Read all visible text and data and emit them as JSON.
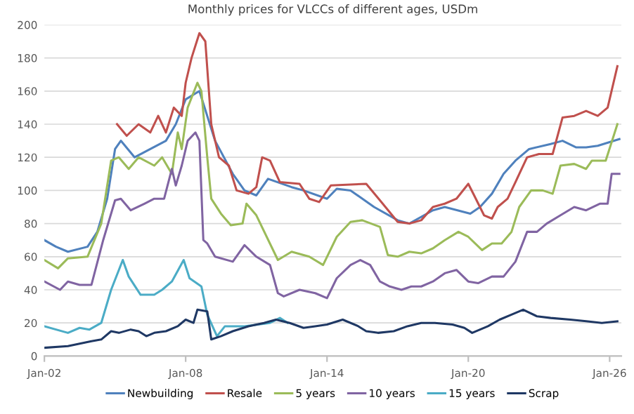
{
  "chart_data": {
    "type": "line",
    "title": "Monthly prices for VLCCs of different ages, USDm",
    "xlim": [
      "2002-01",
      "2026-07"
    ],
    "xticks": [
      {
        "value": "2002-01",
        "label": "Jan-02"
      },
      {
        "value": "2008-01",
        "label": "Jan-08"
      },
      {
        "value": "2014-01",
        "label": "Jan-14"
      },
      {
        "value": "2020-01",
        "label": "Jan-20"
      },
      {
        "value": "2026-01",
        "label": "Jan-26"
      }
    ],
    "ylim": [
      0,
      200
    ],
    "yticks": [
      0,
      20,
      40,
      60,
      80,
      100,
      120,
      140,
      160,
      180,
      200
    ],
    "grid": "y",
    "legend": "bottom",
    "series": [
      {
        "name": "Newbuilding",
        "color": "#4f81bd",
        "x": [
          "2002-01",
          "2002-07",
          "2003-01",
          "2003-11",
          "2004-04",
          "2004-09",
          "2005-01",
          "2005-04",
          "2005-11",
          "2006-07",
          "2007-03",
          "2007-08",
          "2008-01",
          "2008-08",
          "2009-04",
          "2010-01",
          "2010-07",
          "2011-01",
          "2011-07",
          "2012-07",
          "2013-01",
          "2014-01",
          "2014-06",
          "2015-01",
          "2016-01",
          "2017-01",
          "2017-07",
          "2018-07",
          "2019-01",
          "2020-02",
          "2020-07",
          "2021-01",
          "2021-07",
          "2022-01",
          "2022-08",
          "2023-07",
          "2024-01",
          "2024-08",
          "2025-01",
          "2025-07",
          "2026-06"
        ],
        "values": [
          70,
          66,
          63,
          66,
          75,
          95,
          125,
          130,
          120,
          125,
          130,
          140,
          155,
          160,
          130,
          110,
          100,
          97,
          107,
          102,
          100,
          95,
          101,
          100,
          90,
          82,
          80,
          88,
          90,
          86,
          90,
          98,
          110,
          118,
          125,
          128,
          130,
          126,
          126,
          127,
          131
        ]
      },
      {
        "name": "Resale",
        "color": "#c0504d",
        "x": [
          "2005-02",
          "2005-07",
          "2006-01",
          "2006-07",
          "2006-11",
          "2007-03",
          "2007-07",
          "2007-11",
          "2008-01",
          "2008-04",
          "2008-08",
          "2008-11",
          "2009-02",
          "2009-06",
          "2009-11",
          "2010-03",
          "2010-09",
          "2011-01",
          "2011-04",
          "2011-08",
          "2012-01",
          "2012-11",
          "2013-04",
          "2013-09",
          "2014-03",
          "2015-09",
          "2016-04",
          "2017-01",
          "2017-07",
          "2018-01",
          "2018-07",
          "2019-01",
          "2019-07",
          "2020-01",
          "2020-04",
          "2020-09",
          "2021-01",
          "2021-04",
          "2021-09",
          "2022-01",
          "2022-07",
          "2023-01",
          "2023-08",
          "2024-01",
          "2024-07",
          "2025-01",
          "2025-07",
          "2025-12",
          "2026-05"
        ],
        "values": [
          140,
          133,
          140,
          135,
          145,
          135,
          150,
          145,
          165,
          180,
          195,
          190,
          140,
          120,
          115,
          100,
          98,
          102,
          120,
          118,
          105,
          104,
          95,
          93,
          103,
          104,
          94,
          81,
          80,
          82,
          90,
          92,
          95,
          104,
          97,
          85,
          83,
          90,
          95,
          105,
          120,
          122,
          122,
          144,
          145,
          148,
          145,
          150,
          175
        ]
      },
      {
        "name": "5 years",
        "color": "#9bbb59",
        "x": [
          "2002-01",
          "2002-08",
          "2003-01",
          "2003-11",
          "2004-06",
          "2004-11",
          "2005-03",
          "2005-08",
          "2006-01",
          "2006-09",
          "2007-01",
          "2007-06",
          "2007-09",
          "2007-11",
          "2008-02",
          "2008-07",
          "2008-09",
          "2008-12",
          "2009-02",
          "2009-07",
          "2009-12",
          "2010-06",
          "2010-08",
          "2011-01",
          "2011-12",
          "2012-07",
          "2013-04",
          "2013-11",
          "2014-06",
          "2015-01",
          "2015-07",
          "2016-04",
          "2016-08",
          "2017-01",
          "2017-07",
          "2018-01",
          "2018-07",
          "2019-01",
          "2019-08",
          "2020-01",
          "2020-08",
          "2021-01",
          "2021-06",
          "2021-11",
          "2022-03",
          "2022-09",
          "2023-03",
          "2023-08",
          "2023-12",
          "2024-07",
          "2025-01",
          "2025-04",
          "2025-11",
          "2026-05"
        ],
        "values": [
          58,
          53,
          59,
          60,
          80,
          118,
          120,
          113,
          120,
          115,
          120,
          110,
          135,
          125,
          150,
          165,
          160,
          120,
          95,
          86,
          79,
          80,
          92,
          85,
          58,
          63,
          60,
          55,
          72,
          81,
          82,
          78,
          61,
          60,
          63,
          62,
          65,
          70,
          75,
          72,
          64,
          68,
          68,
          75,
          90,
          100,
          100,
          98,
          115,
          116,
          113,
          118,
          118,
          140
        ]
      },
      {
        "name": "10 years",
        "color": "#8064a2",
        "x": [
          "2002-01",
          "2002-09",
          "2003-01",
          "2003-07",
          "2004-01",
          "2004-07",
          "2005-01",
          "2005-04",
          "2005-09",
          "2006-04",
          "2006-09",
          "2007-02",
          "2007-06",
          "2007-08",
          "2007-11",
          "2008-02",
          "2008-06",
          "2008-08",
          "2008-10",
          "2008-12",
          "2009-04",
          "2010-01",
          "2010-07",
          "2011-01",
          "2011-08",
          "2011-12",
          "2012-03",
          "2012-11",
          "2013-07",
          "2014-01",
          "2014-06",
          "2015-01",
          "2015-06",
          "2015-11",
          "2016-04",
          "2016-09",
          "2017-03",
          "2017-08",
          "2018-01",
          "2018-07",
          "2019-01",
          "2019-07",
          "2020-01",
          "2020-06",
          "2021-01",
          "2021-07",
          "2022-01",
          "2022-07",
          "2022-12",
          "2023-05",
          "2023-12",
          "2024-07",
          "2025-01",
          "2025-08",
          "2025-12",
          "2026-02",
          "2026-06"
        ],
        "values": [
          45,
          40,
          45,
          43,
          43,
          70,
          94,
          95,
          88,
          92,
          95,
          95,
          113,
          103,
          115,
          130,
          135,
          130,
          70,
          68,
          60,
          57,
          67,
          60,
          55,
          38,
          36,
          40,
          38,
          35,
          47,
          55,
          58,
          55,
          45,
          42,
          40,
          42,
          42,
          45,
          50,
          52,
          45,
          44,
          48,
          48,
          57,
          75,
          75,
          80,
          85,
          90,
          88,
          92,
          92,
          110,
          110
        ]
      },
      {
        "name": "15 years",
        "color": "#4bacc6",
        "x": [
          "2002-01",
          "2003-01",
          "2003-07",
          "2003-12",
          "2004-06",
          "2004-11",
          "2005-05",
          "2005-08",
          "2006-02",
          "2006-09",
          "2007-01",
          "2007-06",
          "2007-12",
          "2008-03",
          "2008-09",
          "2008-12",
          "2009-05",
          "2009-09",
          "2010-07",
          "2011-08",
          "2012-01",
          "2012-05"
        ],
        "values": [
          18,
          14,
          17,
          16,
          20,
          40,
          58,
          48,
          37,
          37,
          40,
          45,
          58,
          47,
          42,
          25,
          12,
          18,
          18,
          20,
          23,
          20
        ]
      },
      {
        "name": "Scrap",
        "color": "#1f3864",
        "x": [
          "2002-01",
          "2003-01",
          "2004-01",
          "2004-06",
          "2004-11",
          "2005-03",
          "2005-09",
          "2006-01",
          "2006-05",
          "2006-09",
          "2007-03",
          "2007-09",
          "2008-01",
          "2008-05",
          "2008-07",
          "2008-12",
          "2009-02",
          "2009-07",
          "2010-01",
          "2010-09",
          "2011-05",
          "2011-11",
          "2012-06",
          "2013-01",
          "2013-07",
          "2014-01",
          "2014-09",
          "2015-05",
          "2015-09",
          "2016-03",
          "2016-11",
          "2017-06",
          "2018-01",
          "2018-08",
          "2019-05",
          "2019-11",
          "2020-03",
          "2020-11",
          "2021-05",
          "2021-11",
          "2022-05",
          "2022-12",
          "2023-07",
          "2024-05",
          "2025-01",
          "2025-09",
          "2026-05"
        ],
        "values": [
          5,
          6,
          9,
          10,
          15,
          14,
          16,
          15,
          12,
          14,
          15,
          18,
          22,
          20,
          28,
          27,
          10,
          12,
          15,
          18,
          20,
          22,
          20,
          17,
          18,
          19,
          22,
          18,
          15,
          14,
          15,
          18,
          20,
          20,
          19,
          17,
          14,
          18,
          22,
          25,
          28,
          24,
          23,
          22,
          21,
          20,
          21
        ]
      }
    ]
  }
}
